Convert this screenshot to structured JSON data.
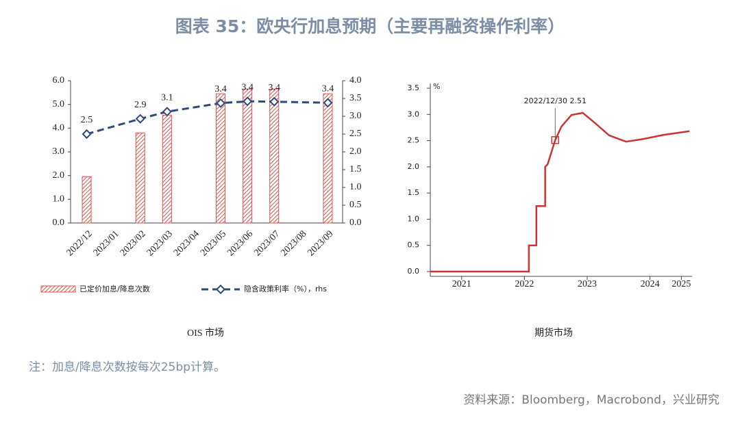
{
  "title": "图表 35：欧央行加息预期（主要再融资操作利率）",
  "chart_data": [
    {
      "type": "bar_line",
      "caption": "OIS 市场",
      "categories": [
        "2022/12",
        "2023/01",
        "2023/02",
        "2023/03",
        "2023/04",
        "2023/05",
        "2023/06",
        "2023/07",
        "2023/08",
        "2023/09"
      ],
      "ylim": [
        0,
        6
      ],
      "yticks": [
        {
          "value": 0,
          "label": "0.0"
        },
        {
          "value": 1,
          "label": "1.0"
        },
        {
          "value": 2,
          "label": "2.0"
        },
        {
          "value": 3,
          "label": "3.0"
        },
        {
          "value": 4,
          "label": "4.0"
        },
        {
          "value": 5,
          "label": "5.0"
        },
        {
          "value": 6,
          "label": "6.0"
        }
      ],
      "y2lim": [
        0,
        4
      ],
      "y2ticks": [
        {
          "value": 0,
          "label": "0.0"
        },
        {
          "value": 0.5,
          "label": "0.5"
        },
        {
          "value": 1,
          "label": "1.0"
        },
        {
          "value": 1.5,
          "label": "1.5"
        },
        {
          "value": 2,
          "label": "2.0"
        },
        {
          "value": 2.5,
          "label": "2.5"
        },
        {
          "value": 3,
          "label": "3.0"
        },
        {
          "value": 3.5,
          "label": "3.5"
        },
        {
          "value": 4,
          "label": "4.0"
        }
      ],
      "series": [
        {
          "name": "已定价加息/降息次数",
          "type": "bar",
          "color": "#d9534f",
          "x": [
            "2022/12",
            "2023/02",
            "2023/03",
            "2023/05",
            "2023/06",
            "2023/07",
            "2023/09"
          ],
          "values": [
            1.95,
            3.8,
            4.55,
            5.45,
            5.65,
            5.65,
            5.45
          ]
        },
        {
          "name": "隐含政策利率（%），rhs",
          "type": "line",
          "axis": "y2",
          "color": "#2e4a7a",
          "x": [
            "2022/12",
            "2023/02",
            "2023/03",
            "2023/05",
            "2023/06",
            "2023/07",
            "2023/09"
          ],
          "values": [
            2.5,
            2.93,
            3.13,
            3.37,
            3.42,
            3.41,
            3.38
          ],
          "value_labels": [
            "2.5",
            "2.9",
            "3.1",
            "3.4",
            "3.4",
            "3.4",
            "3.4"
          ]
        }
      ]
    },
    {
      "type": "line",
      "caption": "期货市场",
      "ylabel": "%",
      "xlim": [
        2021,
        2025.17
      ],
      "xticks": [
        {
          "value": 2021.5,
          "label": "2021"
        },
        {
          "value": 2022.5,
          "label": "2022"
        },
        {
          "value": 2023.5,
          "label": "2023"
        },
        {
          "value": 2024.5,
          "label": "2024"
        },
        {
          "value": 2025,
          "label": "2025"
        }
      ],
      "ylim": [
        0,
        3.5
      ],
      "yticks": [
        {
          "value": 0,
          "label": "0.0"
        },
        {
          "value": 0.5,
          "label": "0.5"
        },
        {
          "value": 1,
          "label": "1.0"
        },
        {
          "value": 1.5,
          "label": "1.5"
        },
        {
          "value": 2,
          "label": "2.0"
        },
        {
          "value": 2.5,
          "label": "2.5"
        },
        {
          "value": 3,
          "label": "3.0"
        },
        {
          "value": 3.5,
          "label": "3.5"
        }
      ],
      "series": [
        {
          "color": "#cc3333",
          "x": [
            2021.0,
            2022.57,
            2022.57,
            2022.69,
            2022.69,
            2022.83,
            2022.83,
            2022.87,
            2022.99,
            2023.09,
            2023.25,
            2023.43,
            2023.63,
            2023.85,
            2024.12,
            2024.39,
            2024.72,
            2025.13
          ],
          "values": [
            0,
            0,
            0.5,
            0.5,
            1.25,
            1.25,
            2.0,
            2.05,
            2.51,
            2.77,
            2.99,
            3.03,
            2.83,
            2.6,
            2.48,
            2.53,
            2.61,
            2.68
          ]
        }
      ],
      "annotation": {
        "text": "2022/12/30 2.51",
        "x": 2022.99,
        "y": 2.51
      }
    }
  ],
  "note": "注：加息/降息次数按每次25bp计算。",
  "source": "资料来源：Bloomberg，Macrobond，兴业研究"
}
